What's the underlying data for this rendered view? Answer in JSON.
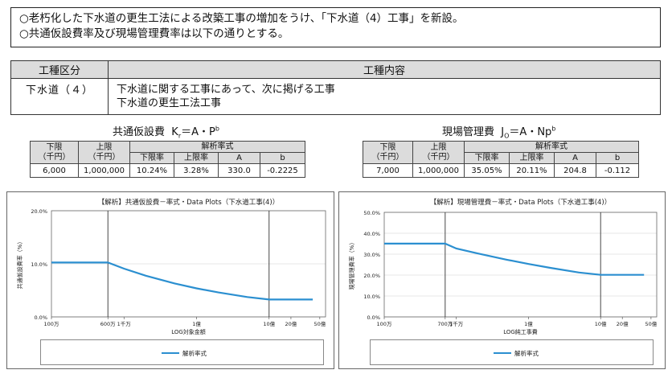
{
  "notice": {
    "line1": "○老朽化した下水道の更生工法による改築工事の増加をうけ、「下水道（4）工事」を新設。",
    "line2": "○共通仮設費率及び現場管理費率は以下の通りとする。"
  },
  "category_table": {
    "headers": [
      "工種区分",
      "工種内容"
    ],
    "row": {
      "category": "下水道（４）",
      "content_line1": "下水道に関する工事にあって、次に掲げる工事",
      "content_line2": "下水道の更生工法工事"
    }
  },
  "common": {
    "formula_label": "共通仮設費",
    "formula_k": "K",
    "formula_k_sub": "r",
    "formula_eq": "＝A・P",
    "formula_exp": "b",
    "table": {
      "h_lower": "下限",
      "h_upper": "上限",
      "h_unit": "（千円）",
      "h_formula": "解析率式",
      "h_sub": [
        "下限率",
        "上限率",
        "A",
        "b"
      ],
      "values": [
        "6,000",
        "1,000,000",
        "10.24%",
        "3.28%",
        "330.0",
        "-0.2225"
      ]
    }
  },
  "site": {
    "formula_label": "現場管理費",
    "formula_k": "J",
    "formula_k_sub": "O",
    "formula_eq": "＝A・Np",
    "formula_exp": "b",
    "table": {
      "h_lower": "下限",
      "h_upper": "上限",
      "h_unit": "（千円）",
      "h_formula": "解析率式",
      "h_sub": [
        "下限率",
        "上限率",
        "A",
        "b"
      ],
      "values": [
        "7,000",
        "1,000,000",
        "35.05%",
        "20.11%",
        "204.8",
        "-0.112"
      ]
    }
  },
  "chart_data": [
    {
      "type": "line",
      "title": "【解析】共通仮設費－率式・Data Plots（下水道工事(4)）",
      "xlabel": "LOG対象金額",
      "ylabel": "共通仮設費率（%）",
      "x_scale": "log",
      "x_tick_labels": [
        "100万",
        "600万",
        "1千万",
        "1億",
        "10億",
        "20億",
        "50億"
      ],
      "x_tick_values": [
        1000,
        6000,
        10000,
        100000,
        1000000,
        2000000,
        5000000
      ],
      "ylim": [
        0,
        20
      ],
      "y_tick_labels": [
        "0.0%",
        "10.0%",
        "20.0%"
      ],
      "y_tick_values": [
        0,
        10,
        20
      ],
      "vlines": [
        6000,
        1000000
      ],
      "legend": [
        "解析率式"
      ],
      "series": [
        {
          "name": "解析率式",
          "color": "#2b8fd0",
          "x": [
            1000,
            6000,
            10000,
            20000,
            50000,
            100000,
            200000,
            500000,
            1000000,
            2000000,
            4000000
          ],
          "y": [
            10.24,
            10.24,
            9.09,
            7.76,
            6.31,
            5.38,
            4.6,
            3.74,
            3.28,
            3.28,
            3.28
          ]
        }
      ]
    },
    {
      "type": "line",
      "title": "【解析】現場管理費－率式・Data Plots（下水道工事(4)）",
      "xlabel": "LOG純工事費",
      "ylabel": "現場管理費率（%）",
      "x_scale": "log",
      "x_tick_labels": [
        "100万",
        "700万",
        "1千万",
        "1億",
        "10億",
        "20億",
        "50億"
      ],
      "x_tick_values": [
        1000,
        7000,
        10000,
        100000,
        1000000,
        2000000,
        5000000
      ],
      "ylim": [
        0,
        50
      ],
      "y_tick_labels": [
        "0.0%",
        "10.0%",
        "20.0%",
        "30.0%",
        "40.0%",
        "50.0%"
      ],
      "y_tick_values": [
        0,
        10,
        20,
        30,
        40,
        50
      ],
      "vlines": [
        7000,
        1000000
      ],
      "legend": [
        "解析率式"
      ],
      "series": [
        {
          "name": "解析率式",
          "color": "#2b8fd0",
          "x": [
            1000,
            7000,
            10000,
            20000,
            50000,
            100000,
            200000,
            500000,
            1000000,
            2000000,
            4000000
          ],
          "y": [
            35.05,
            35.05,
            32.71,
            30.3,
            27.34,
            25.32,
            23.45,
            21.22,
            20.11,
            20.11,
            20.11
          ]
        }
      ]
    }
  ]
}
